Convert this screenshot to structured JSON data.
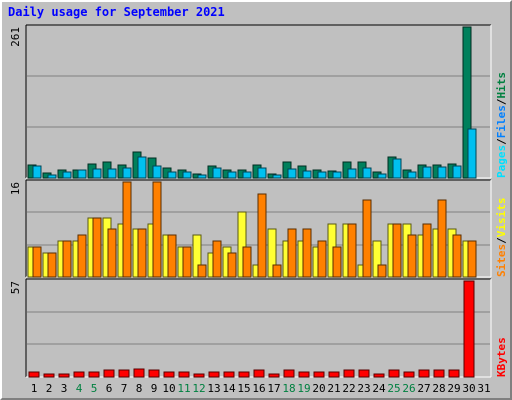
{
  "title": "Daily usage for September 2021",
  "chart_data": [
    {
      "type": "bar",
      "panel": "hits-files-pages",
      "max_label": "261",
      "ylim": [
        0,
        261
      ],
      "categories": [
        "1",
        "2",
        "3",
        "4",
        "5",
        "6",
        "7",
        "8",
        "9",
        "10",
        "11",
        "12",
        "13",
        "14",
        "15",
        "16",
        "17",
        "18",
        "19",
        "20",
        "21",
        "22",
        "23",
        "24",
        "25",
        "26",
        "27",
        "28",
        "29",
        "30",
        "31"
      ],
      "legend": [
        {
          "text": "Hits",
          "color": "#008040"
        },
        {
          "text": "Files",
          "color": "#0080ff"
        },
        {
          "text": "Pages",
          "color": "#00e0ff"
        }
      ],
      "series": [
        {
          "name": "Hits",
          "color": "#00805c",
          "values": [
            23,
            8,
            13,
            14,
            25,
            27,
            23,
            45,
            34,
            17,
            13,
            7,
            20,
            14,
            13,
            22,
            7,
            27,
            20,
            13,
            12,
            27,
            27,
            11,
            37,
            14,
            22,
            22,
            24,
            261,
            0
          ]
        },
        {
          "name": "Files",
          "color": "#00c0f0",
          "values": [
            20,
            6,
            11,
            13,
            16,
            16,
            17,
            37,
            20,
            11,
            11,
            5,
            17,
            11,
            11,
            18,
            6,
            16,
            12,
            11,
            10,
            16,
            17,
            7,
            32,
            11,
            19,
            19,
            20,
            85,
            0
          ]
        }
      ]
    },
    {
      "type": "bar",
      "panel": "visits-sites",
      "max_label": "16",
      "ylim": [
        0,
        16
      ],
      "categories": [
        "1",
        "2",
        "3",
        "4",
        "5",
        "6",
        "7",
        "8",
        "9",
        "10",
        "11",
        "12",
        "13",
        "14",
        "15",
        "16",
        "17",
        "18",
        "19",
        "20",
        "21",
        "22",
        "23",
        "24",
        "25",
        "26",
        "27",
        "28",
        "29",
        "30",
        "31"
      ],
      "legend": [
        {
          "text": "Visits",
          "color": "#ffff00"
        },
        {
          "text": "Sites",
          "color": "#ff8000"
        }
      ],
      "series": [
        {
          "name": "Visits",
          "color": "#ffff33",
          "values": [
            5,
            4,
            6,
            6,
            10,
            10,
            9,
            8,
            9,
            7,
            5,
            7,
            4,
            5,
            11,
            2,
            8,
            6,
            6,
            5,
            9,
            9,
            2,
            6,
            9,
            9,
            7,
            8,
            8,
            6,
            0
          ]
        },
        {
          "name": "Sites",
          "color": "#ff8000",
          "values": [
            5,
            4,
            6,
            7,
            10,
            8,
            16,
            8,
            16,
            7,
            5,
            2,
            6,
            4,
            5,
            14,
            2,
            8,
            8,
            6,
            5,
            9,
            13,
            2,
            9,
            7,
            9,
            13,
            7,
            6,
            0
          ]
        }
      ]
    },
    {
      "type": "bar",
      "panel": "kbytes",
      "max_label": "57",
      "ylim": [
        0,
        57
      ],
      "categories": [
        "1",
        "2",
        "3",
        "4",
        "5",
        "6",
        "7",
        "8",
        "9",
        "10",
        "11",
        "12",
        "13",
        "14",
        "15",
        "16",
        "17",
        "18",
        "19",
        "20",
        "21",
        "22",
        "23",
        "24",
        "25",
        "26",
        "27",
        "28",
        "29",
        "30",
        "31"
      ],
      "legend": [
        {
          "text": "KBytes",
          "color": "#ff0000"
        }
      ],
      "series": [
        {
          "name": "KBytes",
          "color": "#ff0000",
          "values": [
            3,
            2,
            2,
            3,
            3,
            4,
            4,
            5,
            4,
            3,
            3,
            2,
            3,
            3,
            3,
            4,
            2,
            4,
            3,
            3,
            3,
            4,
            4,
            2,
            4,
            3,
            4,
            4,
            4,
            57,
            0
          ]
        }
      ]
    }
  ],
  "weekend_day_color": "#008040",
  "weekday_color": "#000000",
  "weekend_days": [
    4,
    5,
    11,
    12,
    18,
    19,
    25,
    26
  ]
}
